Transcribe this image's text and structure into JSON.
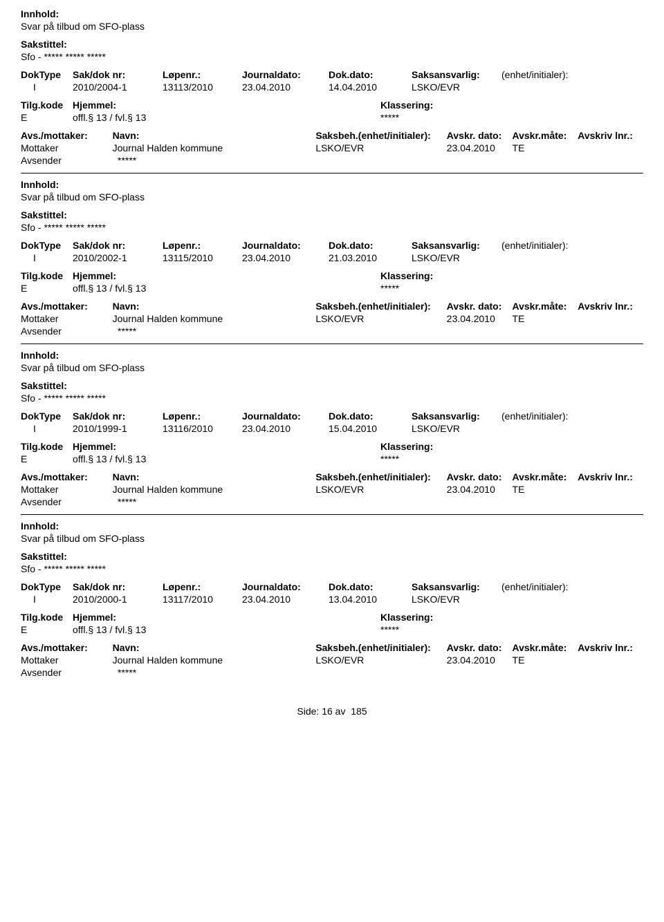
{
  "labels": {
    "innhold": "Innhold:",
    "sakstittel": "Sakstittel:",
    "doktype": "DokType",
    "sakdok": "Sak/dok nr:",
    "lopenr": "Løpenr.:",
    "journaldato": "Journaldato:",
    "dokdato": "Dok.dato:",
    "saksansvarlig": "Saksansvarlig:",
    "enhet_initialer": "(enhet/initialer):",
    "tilgkode": "Tilg.kode",
    "hjemmel": "Hjemmel:",
    "klassering": "Klassering:",
    "avs_mottaker": "Avs./mottaker:",
    "navn": "Navn:",
    "saksbeh_enhet": "Saksbeh.(enhet/initialer):",
    "avskr_dato": "Avskr. dato:",
    "avskr_mate": "Avskr.måte:",
    "avskriv_lnr": "Avskriv lnr.:",
    "mottaker": "Mottaker",
    "avsender": "Avsender",
    "side": "Side:",
    "av": "av"
  },
  "common": {
    "innhold_value": "Svar på tilbud om SFO-plass",
    "sakstittel_value": "Sfo - ***** ***** *****",
    "doktype_value": "I",
    "journaldato_value": "23.04.2010",
    "saksansvarlig_value": "LSKO/EVR",
    "tilgkode_value": "E",
    "hjemmel_value": "offl.§ 13 / fvl.§ 13",
    "klassering_value": "*****",
    "mottaker_navn": "Journal Halden kommune",
    "mottaker_saksbeh": "LSKO/EVR",
    "mottaker_avskr_dato": "23.04.2010",
    "mottaker_avskr_mate": "TE",
    "avsender_navn": "*****"
  },
  "records": [
    {
      "sakdok": "2010/2004-1",
      "lopenr": "13113/2010",
      "dokdato": "14.04.2010"
    },
    {
      "sakdok": "2010/2002-1",
      "lopenr": "13115/2010",
      "dokdato": "21.03.2010"
    },
    {
      "sakdok": "2010/1999-1",
      "lopenr": "13116/2010",
      "dokdato": "15.04.2010"
    },
    {
      "sakdok": "2010/2000-1",
      "lopenr": "13117/2010",
      "dokdato": "13.04.2010"
    }
  ],
  "page": {
    "current": "16",
    "total": "185"
  }
}
